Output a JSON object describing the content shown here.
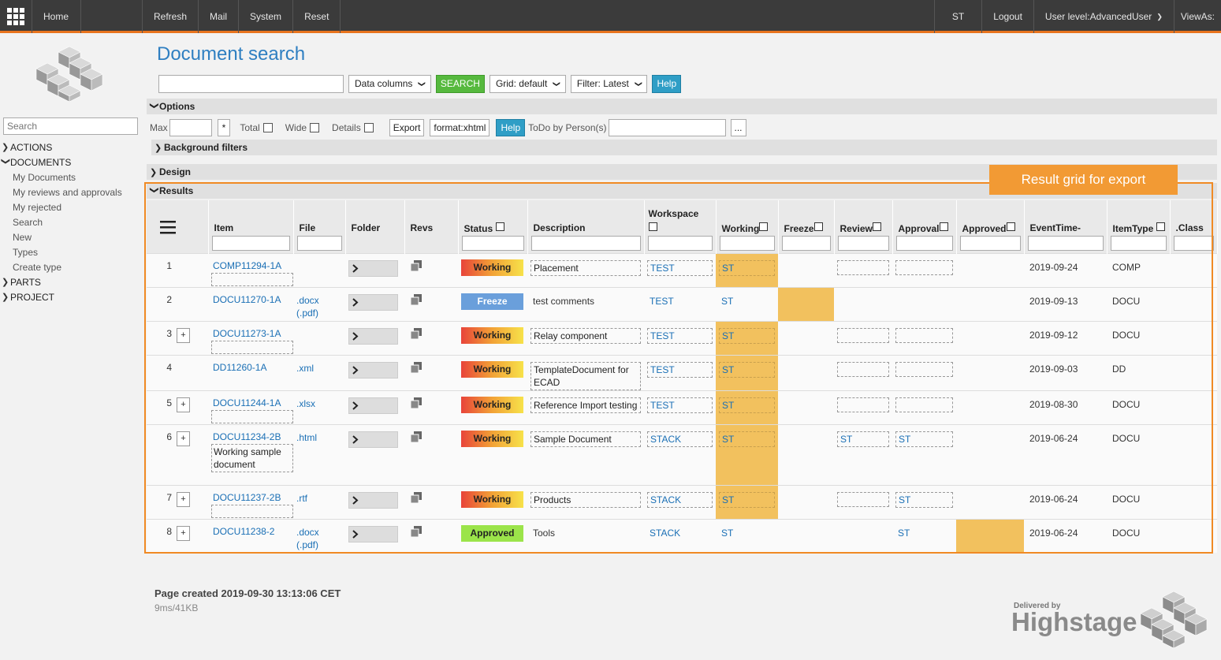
{
  "topbar": {
    "home": "Home",
    "refresh": "Refresh",
    "mail": "Mail",
    "system": "System",
    "reset": "Reset",
    "user": "ST",
    "logout": "Logout",
    "user_level": "User level:AdvancedUser",
    "views_as": "ViewAs:"
  },
  "sidebar": {
    "search_placeholder": "Search",
    "actions": "ACTIONS",
    "documents": "DOCUMENTS",
    "documents_items": [
      "My Documents",
      "My reviews and approvals",
      "My rejected",
      "Search",
      "New",
      "Types",
      "Create type"
    ],
    "parts": "PARTS",
    "project": "PROJECT"
  },
  "page": {
    "title": "Document search"
  },
  "search_bar": {
    "data_columns": "Data columns",
    "search_button": "SEARCH",
    "grid": "Grid: default",
    "filter": "Filter: Latest",
    "help": "Help"
  },
  "options": {
    "label": "Options",
    "max": "Max",
    "star": "*",
    "total": "Total",
    "wide": "Wide",
    "details": "Details",
    "export": "Export",
    "format": "format:xhtml",
    "help": "Help",
    "todo": "ToDo by Person(s)",
    "more": "..."
  },
  "sections": {
    "background_filters": "Background filters",
    "design": "Design",
    "results": "Results"
  },
  "callout": "Result grid for export",
  "columns": {
    "item": "Item",
    "file": "File",
    "folder": "Folder",
    "revs": "Revs",
    "status": "Status",
    "description": "Description",
    "workspace": "Workspace",
    "working": "Working",
    "freeze": "Freeze",
    "review": "Review",
    "approval": "Approval",
    "approved": "Approved",
    "event_time": "EventTime-",
    "item_type": "ItemType",
    "class": ".Class"
  },
  "rows": [
    {
      "num": "1",
      "item": "COMP11294-1A",
      "note": "",
      "file": "",
      "file2": "",
      "status": "Working",
      "desc": "Placement",
      "ws": "TEST",
      "working": "ST",
      "freeze": "",
      "review": "",
      "approval": "",
      "approved": "",
      "time": "2019-09-24",
      "type": "COMP"
    },
    {
      "num": "2",
      "item": "DOCU11270-1A",
      "note": "",
      "file": ".docx",
      "file2": "(.pdf)",
      "status": "Freeze",
      "desc": "test comments",
      "ws": "TEST",
      "working": "ST",
      "freeze": "",
      "review": "",
      "approval": "",
      "approved": "",
      "time": "2019-09-13",
      "type": "DOCU"
    },
    {
      "num": "3",
      "item": "DOCU11273-1A",
      "note": "",
      "file": "",
      "file2": "",
      "status": "Working",
      "desc": "Relay component",
      "ws": "TEST",
      "working": "ST",
      "freeze": "",
      "review": "",
      "approval": "",
      "approved": "",
      "time": "2019-09-12",
      "type": "DOCU"
    },
    {
      "num": "4",
      "item": "DD11260-1A",
      "note": "",
      "file": ".xml",
      "file2": "",
      "status": "Working",
      "desc": "TemplateDocument for ECAD",
      "ws": "TEST",
      "working": "ST",
      "freeze": "",
      "review": "",
      "approval": "",
      "approved": "",
      "time": "2019-09-03",
      "type": "DD"
    },
    {
      "num": "5",
      "item": "DOCU11244-1A",
      "note": "",
      "file": ".xlsx",
      "file2": "",
      "status": "Working",
      "desc": "Reference Import testing",
      "ws": "TEST",
      "working": "ST",
      "freeze": "",
      "review": "",
      "approval": "",
      "approved": "",
      "time": "2019-08-30",
      "type": "DOCU"
    },
    {
      "num": "6",
      "item": "DOCU11234-2B",
      "note": "Working sample document",
      "file": ".html",
      "file2": "",
      "status": "Working",
      "desc": "Sample Document",
      "ws": "STACK",
      "working": "ST",
      "freeze": "",
      "review": "ST",
      "approval": "ST",
      "approved": "",
      "time": "2019-06-24",
      "type": "DOCU"
    },
    {
      "num": "7",
      "item": "DOCU11237-2B",
      "note": "",
      "file": ".rtf",
      "file2": "",
      "status": "Working",
      "desc": "Products",
      "ws": "STACK",
      "working": "ST",
      "freeze": "",
      "review": "",
      "approval": "ST",
      "approved": "",
      "time": "2019-06-24",
      "type": "DOCU"
    },
    {
      "num": "8",
      "item": "DOCU11238-2",
      "note": "",
      "file": ".docx",
      "file2": "(.pdf)",
      "status": "Approved",
      "desc": "Tools",
      "ws": "STACK",
      "working": "ST",
      "freeze": "",
      "review": "",
      "approval": "ST",
      "approved": "",
      "time": "2019-06-24",
      "type": "DOCU"
    }
  ],
  "footer": {
    "created": "Page created 2019-09-30 13:13:06 CET",
    "stats": "9ms/41KB",
    "delivered_by": "Delivered by",
    "brand": "Highstage"
  },
  "colors": {
    "accent": "#e8741e",
    "title_blue": "#2f7fc1",
    "link_blue": "#1a6fb5",
    "highlight": "#f2c15e",
    "search_green": "#56b93e",
    "help_blue": "#2f9ec6"
  }
}
